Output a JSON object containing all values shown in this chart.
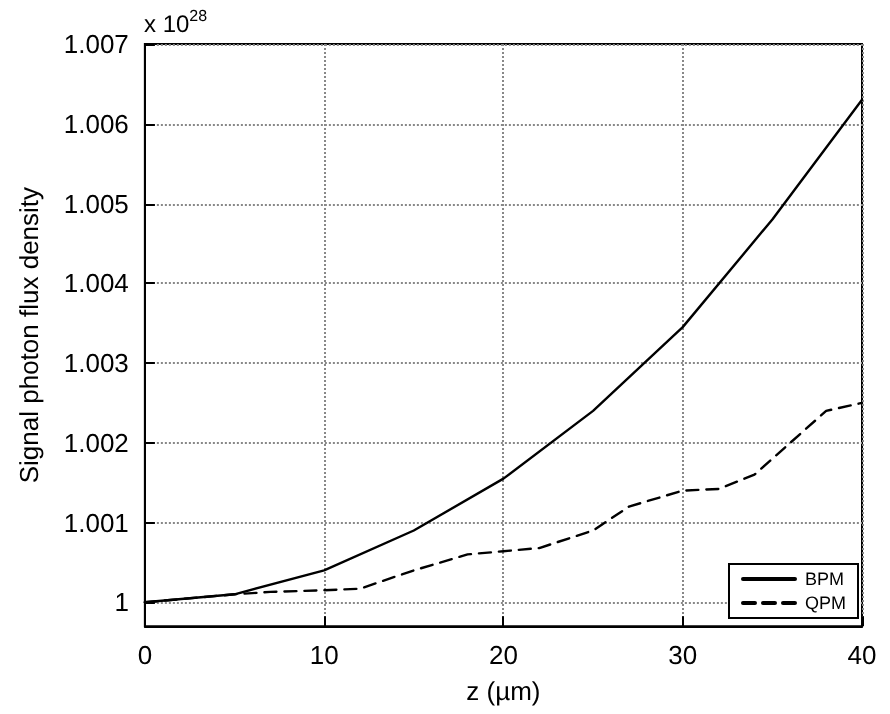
{
  "chart_data": {
    "type": "line",
    "xlabel": "z (µm)",
    "ylabel": "Signal photon flux density",
    "annotations": [
      "x 10$^{28}$"
    ],
    "xlim": [
      0,
      40
    ],
    "xticks": [
      0,
      10,
      20,
      30,
      40
    ],
    "ylim": [
      0.9997,
      1.007
    ],
    "yticks": [
      1,
      1.001,
      1.002,
      1.003,
      1.004,
      1.005,
      1.006,
      1.007
    ],
    "grid": true,
    "legend": "bottom right",
    "marker": "none",
    "series": [
      {
        "name": "BPM",
        "color": "#000000",
        "line_style": "solid",
        "x": [
          0,
          5,
          10,
          15,
          20,
          25,
          30,
          35,
          40
        ],
        "values": [
          1.0,
          1.0001,
          1.0004,
          1.0009,
          1.00155,
          1.0024,
          1.00345,
          1.0048,
          1.0063
        ]
      },
      {
        "name": "QPM",
        "color": "#000000",
        "line_style": "dashed",
        "x": [
          0,
          5,
          7,
          10,
          12,
          15,
          18,
          20,
          22,
          25,
          27,
          30,
          32,
          34,
          36,
          38,
          40
        ],
        "values": [
          1.0,
          1.0001,
          1.00013,
          1.00015,
          1.00017,
          1.0004,
          1.0006,
          1.00064,
          1.00068,
          1.0009,
          1.0012,
          1.0014,
          1.00142,
          1.0016,
          1.002,
          1.0024,
          1.0025
        ]
      }
    ]
  }
}
